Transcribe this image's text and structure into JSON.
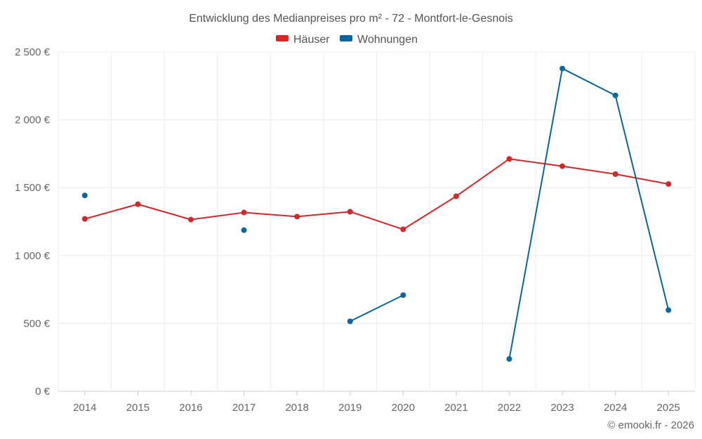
{
  "chart_data": {
    "type": "line",
    "title": "Entwicklung des Medianpreises pro m² - 72 - Montfort-le-Gesnois",
    "categories": [
      "2014",
      "2015",
      "2016",
      "2017",
      "2018",
      "2019",
      "2020",
      "2021",
      "2022",
      "2023",
      "2024",
      "2025"
    ],
    "series": [
      {
        "name": "Häuser",
        "color": "#d62728",
        "values": [
          1270,
          1378,
          1265,
          1317,
          1287,
          1323,
          1193,
          1437,
          1712,
          1658,
          1600,
          1527
        ]
      },
      {
        "name": "Wohnungen",
        "color": "#0a66a3",
        "values": [
          1443,
          null,
          null,
          1187,
          null,
          515,
          708,
          null,
          238,
          2378,
          2180,
          598
        ]
      }
    ],
    "ylim": [
      0,
      2500
    ],
    "yticks": [
      0,
      500,
      1000,
      1500,
      2000,
      2500
    ],
    "ytick_labels": [
      "0 €",
      "500 €",
      "1 000 €",
      "1 500 €",
      "2 000 €",
      "2 500 €"
    ],
    "xlabel": "",
    "ylabel": "",
    "legend_position": "top-center",
    "grid": true
  },
  "credit": "© emooki.fr - 2026"
}
